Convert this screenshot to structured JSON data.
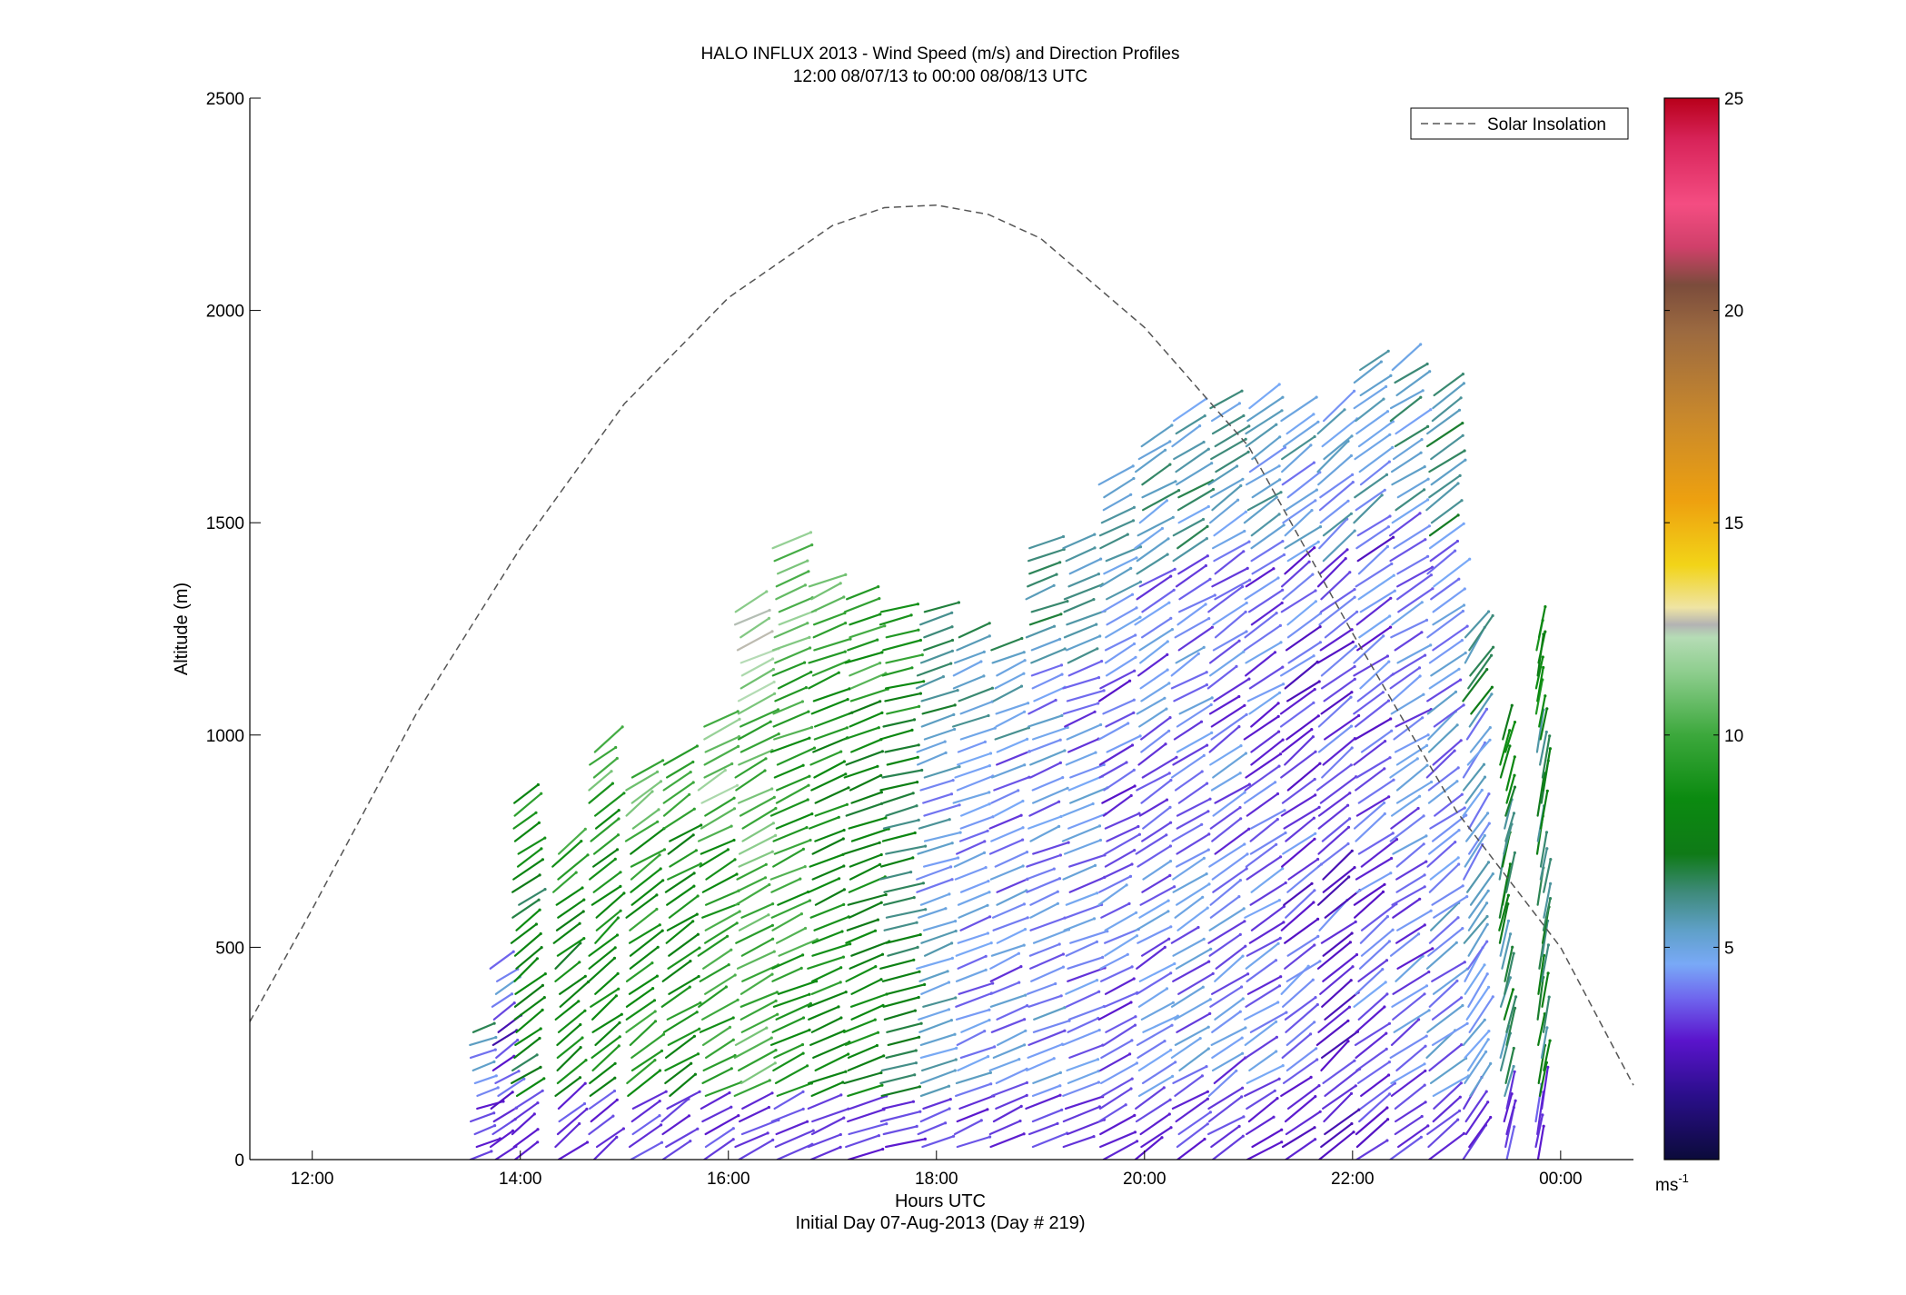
{
  "chart_data": {
    "type": "wind-barb-profile",
    "title": "HALO INFLUX 2013 - Wind Speed (m/s) and Direction Profiles",
    "subtitle": "12:00 08/07/13 to 00:00 08/08/13  UTC",
    "xlabel": "Hours UTC",
    "xlabel2": "Initial Day 07-Aug-2013 (Day # 219)",
    "ylabel": "Altitude (m)",
    "xlim": [
      11.4,
      24.7
    ],
    "ylim": [
      0,
      2500
    ],
    "x_ticks": [
      {
        "value": 12,
        "label": "12:00"
      },
      {
        "value": 14,
        "label": "14:00"
      },
      {
        "value": 16,
        "label": "16:00"
      },
      {
        "value": 18,
        "label": "18:00"
      },
      {
        "value": 20,
        "label": "20:00"
      },
      {
        "value": 22,
        "label": "22:00"
      },
      {
        "value": 24,
        "label": "00:00"
      }
    ],
    "y_ticks": [
      {
        "value": 0,
        "label": "0"
      },
      {
        "value": 500,
        "label": "500"
      },
      {
        "value": 1000,
        "label": "1000"
      },
      {
        "value": 1500,
        "label": "1500"
      },
      {
        "value": 2000,
        "label": "2000"
      },
      {
        "value": 2500,
        "label": "2500"
      }
    ],
    "colorbar": {
      "min": 0,
      "max": 25,
      "unit_label": "ms",
      "unit_exponent": "-1",
      "ticks": [
        {
          "value": 5,
          "label": "5"
        },
        {
          "value": 10,
          "label": "10"
        },
        {
          "value": 15,
          "label": "15"
        },
        {
          "value": 20,
          "label": "20"
        },
        {
          "value": 25,
          "label": "25"
        }
      ],
      "stops": [
        {
          "v": 0,
          "color": "#0b0b3a"
        },
        {
          "v": 1.5,
          "color": "#2a0e8a"
        },
        {
          "v": 2.8,
          "color": "#5a14cc"
        },
        {
          "v": 3.8,
          "color": "#6f66ee"
        },
        {
          "v": 4.6,
          "color": "#79a9f7"
        },
        {
          "v": 5.4,
          "color": "#5fa0c8"
        },
        {
          "v": 6.3,
          "color": "#3e8a7a"
        },
        {
          "v": 7.2,
          "color": "#0f7a17"
        },
        {
          "v": 8.5,
          "color": "#0b8a10"
        },
        {
          "v": 10,
          "color": "#3ca83c"
        },
        {
          "v": 11.5,
          "color": "#8fce8f"
        },
        {
          "v": 12.3,
          "color": "#b5dcb5"
        },
        {
          "v": 12.6,
          "color": "#b3b3b3"
        },
        {
          "v": 13.0,
          "color": "#efe4a4"
        },
        {
          "v": 14.0,
          "color": "#f2d418"
        },
        {
          "v": 15.5,
          "color": "#eea10f"
        },
        {
          "v": 17.5,
          "color": "#c8882c"
        },
        {
          "v": 19.5,
          "color": "#9c6a40"
        },
        {
          "v": 20.6,
          "color": "#7b4c3c"
        },
        {
          "v": 21.5,
          "color": "#d0406a"
        },
        {
          "v": 22.5,
          "color": "#f44d82"
        },
        {
          "v": 24,
          "color": "#d8245a"
        },
        {
          "v": 25,
          "color": "#b8001a"
        }
      ]
    },
    "legend": {
      "entry": "Solar Insolation",
      "style": "dashed",
      "color": "#444444",
      "position": "top-right"
    },
    "solar_insolation": {
      "x": [
        11.4,
        12.0,
        13.0,
        14.0,
        15.0,
        16.0,
        17.0,
        17.5,
        18.0,
        18.5,
        19.0,
        20.0,
        21.0,
        22.0,
        23.0,
        24.0,
        24.7
      ],
      "y": [
        325,
        590,
        1050,
        1440,
        1780,
        2030,
        2200,
        2242,
        2248,
        2226,
        2170,
        1960,
        1680,
        1240,
        820,
        500,
        175
      ]
    },
    "profiles": [
      {
        "t": 13.55,
        "base": 0,
        "top": 300,
        "dx": 0.22,
        "dy": 20,
        "speed": 4.3
      },
      {
        "t": 13.75,
        "base": 0,
        "top": 460,
        "dx": 0.22,
        "dy": 35,
        "speed": 3.2
      },
      {
        "t": 13.95,
        "base": 0,
        "top": 860,
        "dx": 0.25,
        "dy": 45,
        "speed": 7.5
      },
      {
        "t": 14.35,
        "base": 0,
        "top": 720,
        "dx": 0.25,
        "dy": 50,
        "speed": 8.0
      },
      {
        "t": 14.7,
        "base": 0,
        "top": 980,
        "dx": 0.25,
        "dy": 50,
        "speed": 8.5
      },
      {
        "t": 15.05,
        "base": 0,
        "top": 900,
        "dx": 0.28,
        "dy": 50,
        "speed": 9.0
      },
      {
        "t": 15.4,
        "base": 0,
        "top": 950,
        "dx": 0.28,
        "dy": 45,
        "speed": 8.5
      },
      {
        "t": 15.75,
        "base": 0,
        "top": 1030,
        "dx": 0.3,
        "dy": 40,
        "speed": 9.5
      },
      {
        "t": 16.1,
        "base": 0,
        "top": 1300,
        "dx": 0.32,
        "dy": 40,
        "speed": 10.5
      },
      {
        "t": 16.45,
        "base": 0,
        "top": 1450,
        "dx": 0.32,
        "dy": 35,
        "speed": 9.5
      },
      {
        "t": 16.8,
        "base": 0,
        "top": 1370,
        "dx": 0.32,
        "dy": 32,
        "speed": 8.5
      },
      {
        "t": 17.15,
        "base": 0,
        "top": 1330,
        "dx": 0.32,
        "dy": 30,
        "speed": 8.0
      },
      {
        "t": 17.5,
        "base": 30,
        "top": 1300,
        "dx": 0.33,
        "dy": 20,
        "speed": 7.2
      },
      {
        "t": 17.85,
        "base": 30,
        "top": 1290,
        "dx": 0.3,
        "dy": 25,
        "speed": 5.0
      },
      {
        "t": 18.2,
        "base": 30,
        "top": 1250,
        "dx": 0.3,
        "dy": 28,
        "speed": 4.4
      },
      {
        "t": 18.55,
        "base": 30,
        "top": 1200,
        "dx": 0.3,
        "dy": 30,
        "speed": 4.2
      },
      {
        "t": 18.9,
        "base": 30,
        "top": 1450,
        "dx": 0.3,
        "dy": 30,
        "speed": 4.5
      },
      {
        "t": 19.25,
        "base": 30,
        "top": 1450,
        "dx": 0.32,
        "dy": 30,
        "speed": 4.2
      },
      {
        "t": 19.6,
        "base": 0,
        "top": 1610,
        "dx": 0.3,
        "dy": 40,
        "speed": 3.8
      },
      {
        "t": 19.95,
        "base": 0,
        "top": 1700,
        "dx": 0.3,
        "dy": 45,
        "speed": 4.0
      },
      {
        "t": 20.3,
        "base": 0,
        "top": 1750,
        "dx": 0.3,
        "dy": 45,
        "speed": 4.2
      },
      {
        "t": 20.65,
        "base": 0,
        "top": 1780,
        "dx": 0.3,
        "dy": 50,
        "speed": 4.0
      },
      {
        "t": 21.0,
        "base": 0,
        "top": 1790,
        "dx": 0.3,
        "dy": 50,
        "speed": 3.8
      },
      {
        "t": 21.35,
        "base": 0,
        "top": 1750,
        "dx": 0.3,
        "dy": 55,
        "speed": 3.5
      },
      {
        "t": 21.7,
        "base": 0,
        "top": 1750,
        "dx": 0.3,
        "dy": 60,
        "speed": 3.3
      },
      {
        "t": 22.05,
        "base": 0,
        "top": 1870,
        "dx": 0.3,
        "dy": 55,
        "speed": 3.6
      },
      {
        "t": 22.4,
        "base": 0,
        "top": 1860,
        "dx": 0.3,
        "dy": 50,
        "speed": 4.0
      },
      {
        "t": 22.75,
        "base": 0,
        "top": 1800,
        "dx": 0.3,
        "dy": 55,
        "speed": 4.5
      },
      {
        "t": 23.1,
        "base": 0,
        "top": 1250,
        "dx": 0.2,
        "dy": 70,
        "speed": 4.8
      },
      {
        "t": 23.45,
        "base": 0,
        "top": 1000,
        "dx": 0.08,
        "dy": 80,
        "speed": 6.5
      },
      {
        "t": 23.8,
        "base": 0,
        "top": 1250,
        "dx": 0.06,
        "dy": 85,
        "speed": 6.8
      }
    ]
  }
}
